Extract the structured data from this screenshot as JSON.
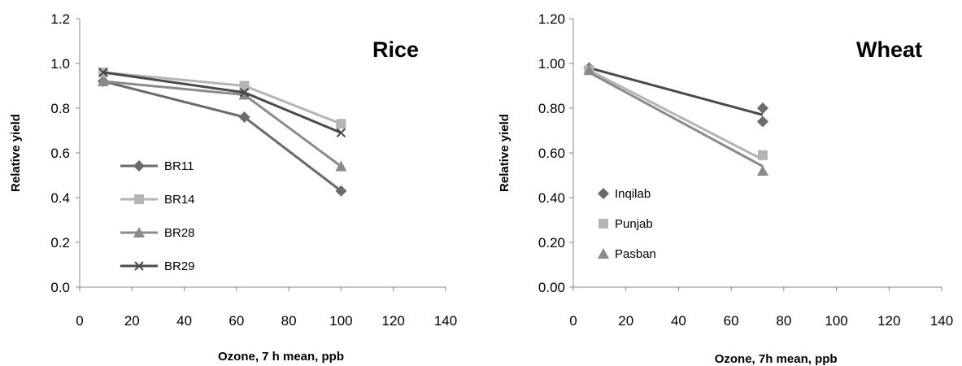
{
  "chart_data": [
    {
      "type": "line",
      "title": "Rice",
      "xlabel": "Ozone, 7 h mean, ppb",
      "ylabel": "Relative yield",
      "xlim": [
        0,
        140
      ],
      "ylim": [
        0,
        1.2
      ],
      "xticks": [
        "0",
        "20",
        "40",
        "60",
        "80",
        "100",
        "120",
        "140"
      ],
      "yticks": [
        "0.0",
        "0.2",
        "0.4",
        "0.6",
        "0.8",
        "1.0",
        "1.2"
      ],
      "legend_position": "center-left",
      "series": [
        {
          "name": "BR11",
          "marker": "diamond",
          "color": "#6b6b6b",
          "points": [
            [
              9,
              0.92
            ],
            [
              63,
              0.76
            ],
            [
              100,
              0.43
            ]
          ]
        },
        {
          "name": "BR14",
          "marker": "square",
          "color": "#b4b4b4",
          "points": [
            [
              9,
              0.96
            ],
            [
              63,
              0.9
            ],
            [
              100,
              0.73
            ]
          ]
        },
        {
          "name": "BR28",
          "marker": "triangle",
          "color": "#8a8a8a",
          "points": [
            [
              9,
              0.92
            ],
            [
              63,
              0.86
            ],
            [
              100,
              0.54
            ]
          ]
        },
        {
          "name": "BR29",
          "marker": "x",
          "color": "#4a4a4a",
          "points": [
            [
              9,
              0.96
            ],
            [
              63,
              0.87
            ],
            [
              100,
              0.69
            ]
          ]
        }
      ]
    },
    {
      "type": "scatter",
      "title": "Wheat",
      "xlabel": "Ozone, 7h mean, ppb",
      "ylabel": "Relative yield",
      "xlim": [
        0,
        140
      ],
      "ylim": [
        0,
        1.2
      ],
      "xticks": [
        "0",
        "20",
        "40",
        "60",
        "80",
        "100",
        "120",
        "140"
      ],
      "yticks": [
        "0.00",
        "0.20",
        "0.40",
        "0.60",
        "0.80",
        "1.00",
        "1.20"
      ],
      "legend_position": "center-left",
      "series": [
        {
          "name": "Inqilab",
          "marker": "diamond",
          "color": "#6b6b6b",
          "points": [
            [
              6,
              0.98
            ],
            [
              72,
              0.8
            ],
            [
              72,
              0.74
            ]
          ]
        },
        {
          "name": "Punjab",
          "marker": "square",
          "color": "#b4b4b4",
          "points": [
            [
              6,
              0.97
            ],
            [
              72,
              0.59
            ]
          ]
        },
        {
          "name": "Pasban",
          "marker": "triangle",
          "color": "#8a8a8a",
          "points": [
            [
              6,
              0.97
            ],
            [
              72,
              0.52
            ]
          ]
        }
      ],
      "trend_lines": [
        {
          "color": "#4a4a4a",
          "points": [
            [
              6,
              0.98
            ],
            [
              72,
              0.77
            ]
          ]
        },
        {
          "color": "#b4b4b4",
          "points": [
            [
              6,
              0.97
            ],
            [
              72,
              0.57
            ]
          ]
        },
        {
          "color": "#8a8a8a",
          "points": [
            [
              6,
              0.96
            ],
            [
              72,
              0.54
            ]
          ]
        }
      ]
    }
  ]
}
